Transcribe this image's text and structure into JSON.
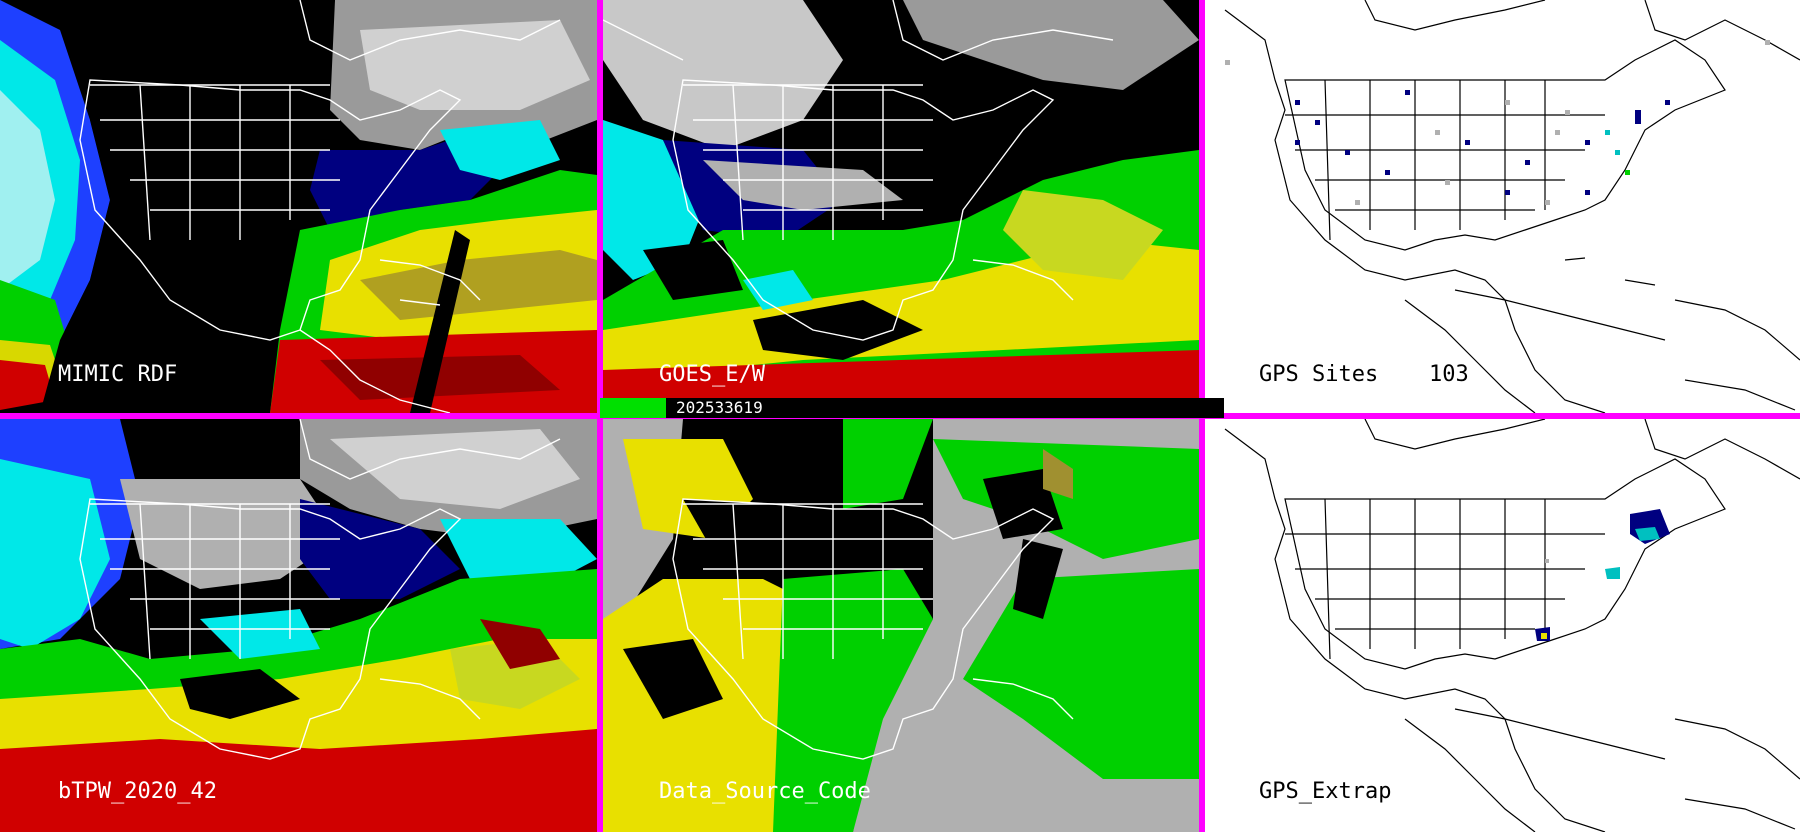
{
  "panels": {
    "mimic": {
      "label": "MIMIC RDF"
    },
    "goes": {
      "label": "GOES_E/W"
    },
    "gps_sites": {
      "label": "GPS Sites",
      "count": "103"
    },
    "btpw": {
      "label": "bTPW_2020_42"
    },
    "data_source": {
      "label": "Data_Source_Code"
    },
    "gps_extrap": {
      "label": "GPS_Extrap"
    }
  },
  "timestamp": "202533619",
  "colors": {
    "divider": "#ff00ff",
    "low_moisture": "#000000",
    "cloud_gray": "#b0b0b0",
    "navy": "#000080",
    "blue": "#1e40ff",
    "cyan": "#00e8e8",
    "green": "#00d000",
    "yellow": "#e8e000",
    "red": "#d00000",
    "darkred": "#800000"
  }
}
